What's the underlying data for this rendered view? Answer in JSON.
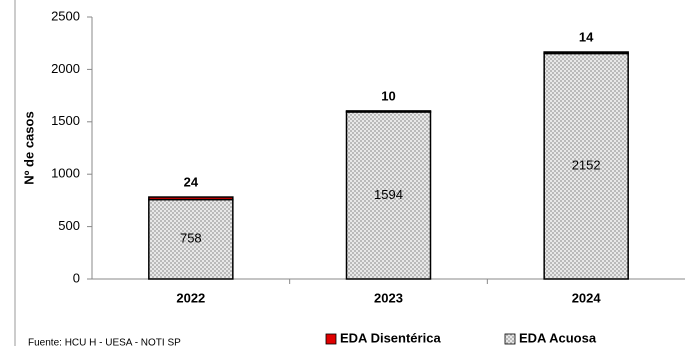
{
  "chart_data": {
    "type": "stacked_bar",
    "y_label": "Nº de casos",
    "source": "Fuente: HCU H - UESA - NOTI SP",
    "categories": [
      "2022",
      "2023",
      "2024"
    ],
    "series": [
      {
        "name": "EDA Acuosa",
        "color": "#d9d9d9",
        "values": [
          758,
          1594,
          2152
        ]
      },
      {
        "name": "EDA Disentérica",
        "color": "#e00000",
        "values": [
          24,
          10,
          14
        ]
      }
    ],
    "ylim": [
      0,
      2500
    ],
    "yticks": [
      0,
      500,
      1000,
      1500,
      2000,
      2500
    ]
  }
}
